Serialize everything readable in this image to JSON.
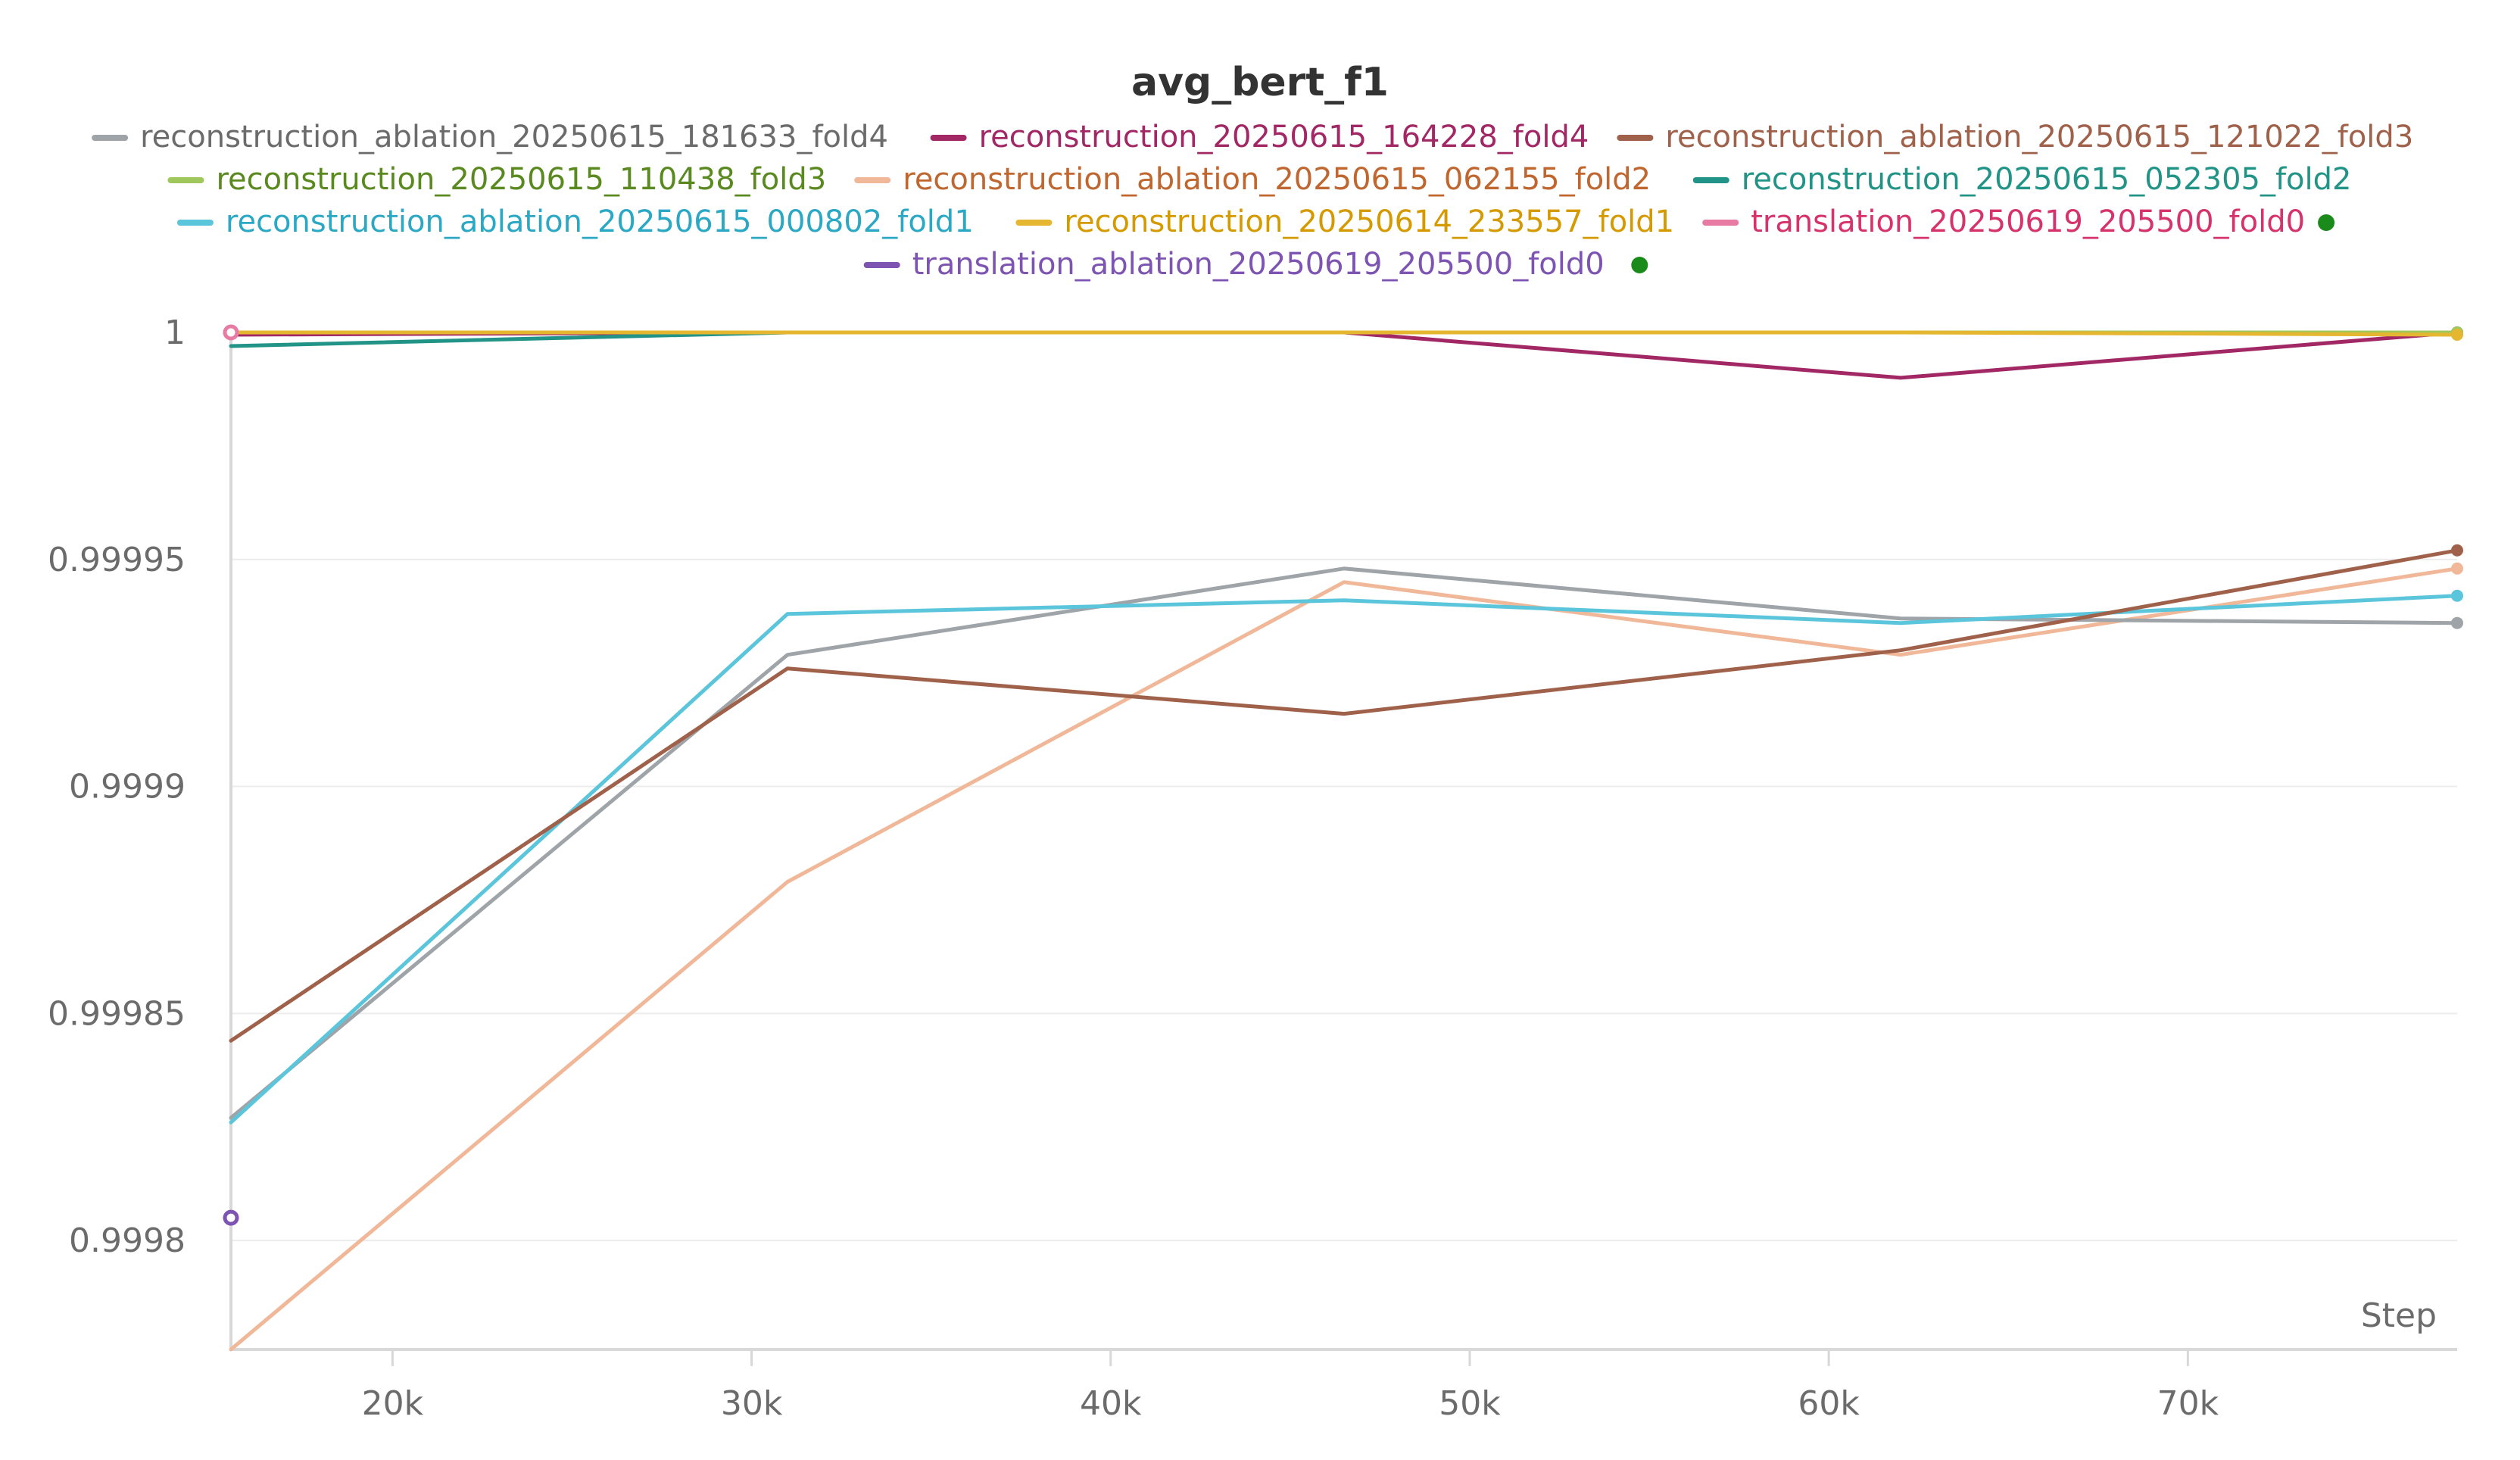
{
  "chart_data": {
    "type": "line",
    "title": "avg_bert_f1",
    "xlabel": "Step",
    "ylabel": "",
    "xlim": [
      15500,
      77500
    ],
    "ylim": [
      0.999776,
      1.0000015
    ],
    "x_ticks": [
      {
        "value": 20000,
        "label": "20k"
      },
      {
        "value": 30000,
        "label": "30k"
      },
      {
        "value": 40000,
        "label": "40k"
      },
      {
        "value": 50000,
        "label": "50k"
      },
      {
        "value": 60000,
        "label": "60k"
      },
      {
        "value": 70000,
        "label": "70k"
      }
    ],
    "y_ticks": [
      {
        "value": 0.9998,
        "label": "0.9998"
      },
      {
        "value": 0.99985,
        "label": "0.99985"
      },
      {
        "value": 0.9999,
        "label": "0.9999"
      },
      {
        "value": 0.99995,
        "label": "0.99995"
      },
      {
        "value": 1.0,
        "label": "1"
      }
    ],
    "grid": true,
    "legend_position": "top",
    "series": [
      {
        "name": "reconstruction_ablation_20250615_181633_fold4",
        "color": "#9fa4a9",
        "text_color": "#6b6b6b",
        "x": [
          15500,
          31000,
          46500,
          62000,
          77500
        ],
        "y": [
          0.999827,
          0.999929,
          0.999948,
          0.999937,
          0.999936
        ]
      },
      {
        "name": "reconstruction_20250615_164228_fold4",
        "color": "#a12864",
        "text_color": "#a12864",
        "x": [
          15500,
          31000,
          46500,
          62000,
          77500
        ],
        "y": [
          0.9999995,
          1.0,
          1.0,
          0.99999,
          1.0
        ]
      },
      {
        "name": "reconstruction_ablation_20250615_121022_fold3",
        "color": "#a0614b",
        "text_color": "#a0614b",
        "x": [
          15500,
          31000,
          46500,
          62000,
          77500
        ],
        "y": [
          0.999844,
          0.999926,
          0.999916,
          0.99993,
          0.999952
        ]
      },
      {
        "name": "reconstruction_20250615_110438_fold3",
        "color": "#a0c75c",
        "text_color": "#5a8a1f",
        "x": [
          15500,
          31000,
          46500,
          62000,
          77500
        ],
        "y": [
          1.0,
          1.0,
          1.0,
          1.0,
          1.0
        ]
      },
      {
        "name": "reconstruction_ablation_20250615_062155_fold2",
        "color": "#f0b898",
        "text_color": "#c0662f",
        "x": [
          15500,
          31000,
          46500,
          62000,
          77500
        ],
        "y": [
          0.999776,
          0.999879,
          0.999945,
          0.999929,
          0.999948
        ]
      },
      {
        "name": "reconstruction_20250615_052305_fold2",
        "color": "#229487",
        "text_color": "#229487",
        "x": [
          15500,
          31000,
          46500,
          62000,
          77500
        ],
        "y": [
          0.999997,
          1.0,
          1.0,
          1.0,
          1.0
        ]
      },
      {
        "name": "reconstruction_ablation_20250615_000802_fold1",
        "color": "#5bc5db",
        "text_color": "#2aa8c4",
        "x": [
          15500,
          31000,
          46500,
          62000,
          77500
        ],
        "y": [
          0.999826,
          0.999938,
          0.999941,
          0.999936,
          0.999942
        ]
      },
      {
        "name": "reconstruction_20250614_233557_fold1",
        "color": "#e5b730",
        "text_color": "#d49a00",
        "x": [
          15500,
          31000,
          46500,
          62000,
          77500
        ],
        "y": [
          1.0,
          1.0,
          1.0,
          1.0,
          0.9999995
        ]
      },
      {
        "name": "translation_20250619_205500_fold0",
        "color": "#e87ba4",
        "text_color": "#d6336c",
        "running": true,
        "x": [
          15500
        ],
        "y": [
          1.0
        ]
      },
      {
        "name": "translation_ablation_20250619_205500_fold0",
        "color": "#7d54b2",
        "text_color": "#7d54b2",
        "running": true,
        "x": [
          15500
        ],
        "y": [
          0.999805
        ]
      }
    ]
  }
}
